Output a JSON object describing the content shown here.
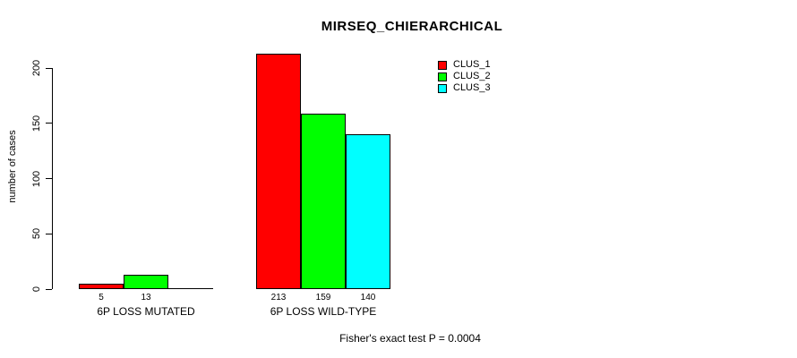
{
  "chart_data": {
    "type": "bar",
    "title": "MIRSEQ_CHIERARCHICAL",
    "categories": [
      "6P LOSS MUTATED",
      "6P LOSS WILD-TYPE"
    ],
    "series": [
      {
        "name": "CLUS_1",
        "color": "#ff0000",
        "values": [
          5,
          213
        ]
      },
      {
        "name": "CLUS_2",
        "color": "#00ff00",
        "values": [
          13,
          159
        ]
      },
      {
        "name": "CLUS_3",
        "color": "#00ffff",
        "values": [
          0,
          140
        ]
      }
    ],
    "bar_labels": [
      [
        "5",
        "13",
        ""
      ],
      [
        "213",
        "159",
        "140"
      ]
    ],
    "ylabel": "number of cases",
    "ylim": [
      0,
      200
    ],
    "yticks": [
      0,
      50,
      100,
      150,
      200
    ],
    "grid": false,
    "legend_position": "top-right",
    "legend_entries": [
      "CLUS_1",
      "CLUS_2",
      "CLUS_3"
    ],
    "annotation": "Fisher's exact test P = 0.0004"
  },
  "colors": {
    "clus_1": "#ff0000",
    "clus_2": "#00ff00",
    "clus_3": "#00ffff",
    "axis": "#000000",
    "background": "#ffffff"
  }
}
